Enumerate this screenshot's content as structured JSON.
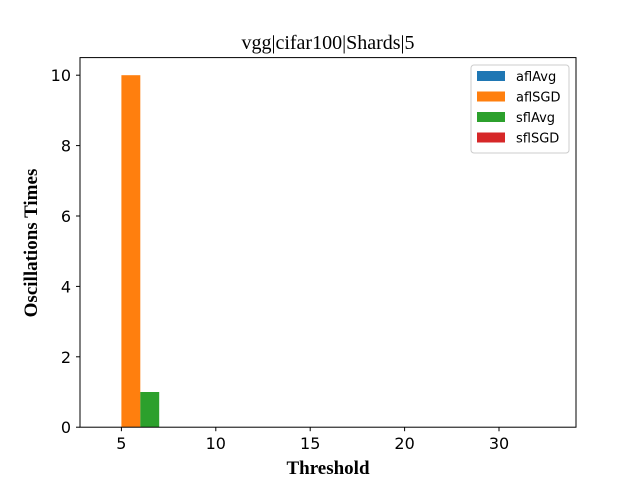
{
  "chart_data": {
    "type": "bar",
    "title": "vgg|cifar100|Shards|5",
    "xlabel": "Threshold",
    "ylabel": "Oscillations Times",
    "categories": [
      "5",
      "10",
      "15",
      "20",
      "30"
    ],
    "series": [
      {
        "name": "aflAvg",
        "color": "#1f77b4",
        "values": [
          0,
          0,
          0,
          0,
          0
        ]
      },
      {
        "name": "aflSGD",
        "color": "#ff7f0e",
        "values": [
          10,
          0,
          0,
          0,
          0
        ]
      },
      {
        "name": "sflAvg",
        "color": "#2ca02c",
        "values": [
          1,
          0,
          0,
          0,
          0
        ]
      },
      {
        "name": "sflSGD",
        "color": "#d62728",
        "values": [
          0,
          0,
          0,
          0,
          0
        ]
      }
    ],
    "ylim": [
      0,
      10.5
    ],
    "yticks": [
      0,
      2,
      4,
      6,
      8,
      10
    ],
    "grid": false,
    "legend": "top-right"
  }
}
